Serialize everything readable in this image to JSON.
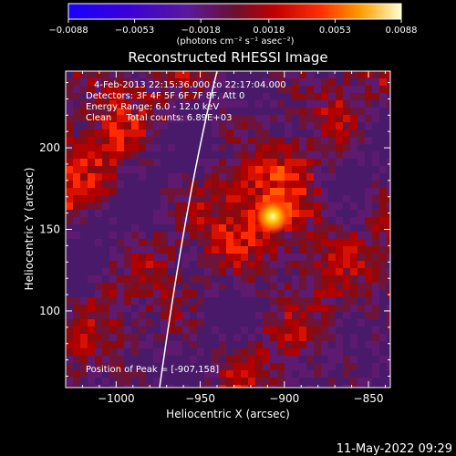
{
  "colorbar": {
    "ticks": [
      "-0.0088",
      "-0.0053",
      "-0.0018",
      "0.0018",
      "0.0053",
      "0.0088"
    ],
    "unit_label": "(photons cm⁻² s⁻¹ asec⁻²)",
    "range": [
      -0.0088,
      0.0088
    ]
  },
  "chart_data": {
    "type": "heatmap",
    "title": "Reconstructed RHESSI Image",
    "xlabel": "Heliocentric X (arcsec)",
    "ylabel": "Heliocentric Y (arcsec)",
    "xlim": [
      -1030,
      -837
    ],
    "ylim": [
      53,
      247
    ],
    "xticks": [
      -1000,
      -950,
      -900,
      -850
    ],
    "xtick_labels": [
      "−1000",
      "−950",
      "−900",
      "−850"
    ],
    "yticks": [
      100,
      150,
      200
    ],
    "ytick_labels": [
      "100",
      "150",
      "200"
    ],
    "peak": [
      -907,
      158
    ],
    "annotations": {
      "time": "4-Feb-2013 22:15:36.000 to 22:17:04.000",
      "detectors": "Detectors: 3F 4F 5F 6F 7F 8F, Att 0",
      "energy": "Energy Range: 6.0 - 12.0 keV",
      "method": "Clean     Total counts: 6.89E+03",
      "peak_label": "Position of Peak = [-907,158]"
    }
  },
  "footer": {
    "date": "11-May-2022 09:29"
  }
}
